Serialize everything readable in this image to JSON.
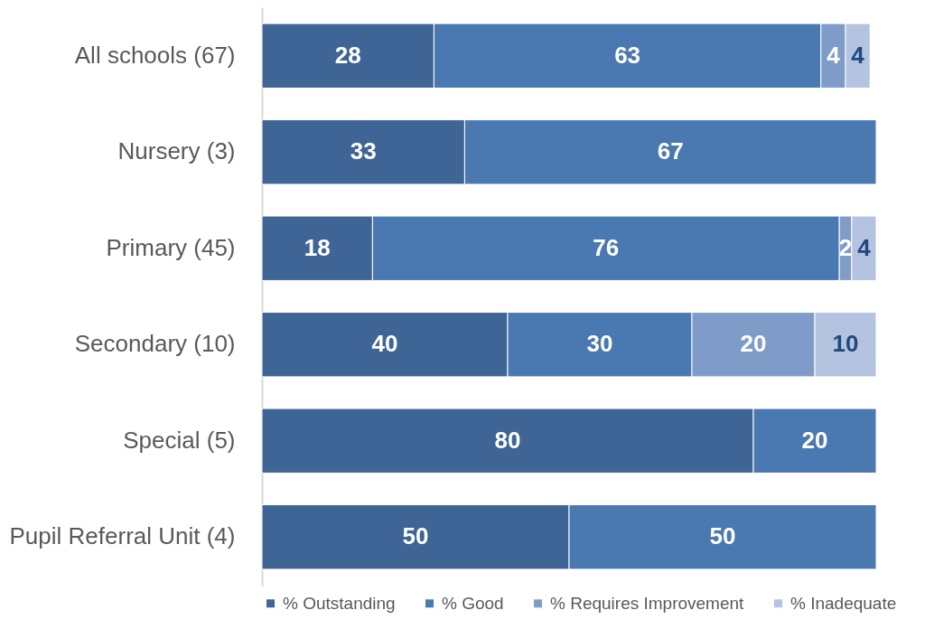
{
  "chart_data": {
    "type": "bar",
    "orientation": "horizontal",
    "stacked": true,
    "data_labels": true,
    "legend": "bottom",
    "grid": false,
    "categories": [
      "All schools (67)",
      "Nursery (3)",
      "Primary (45)",
      "Secondary (10)",
      "Special (5)",
      "Pupil Referral Unit (4)"
    ],
    "series": [
      {
        "name": "% Outstanding",
        "color": "#3e6595",
        "values": [
          28,
          33,
          18,
          40,
          80,
          50
        ]
      },
      {
        "name": "% Good",
        "color": "#4a78b0",
        "values": [
          63,
          67,
          76,
          30,
          20,
          50
        ]
      },
      {
        "name": "% Requires Improvement",
        "color": "#7f9cc9",
        "values": [
          4,
          null,
          2,
          20,
          null,
          null
        ]
      },
      {
        "name": "% Inadequate",
        "color": "#b4c4e0",
        "values": [
          4,
          null,
          4,
          10,
          null,
          null
        ]
      }
    ]
  }
}
